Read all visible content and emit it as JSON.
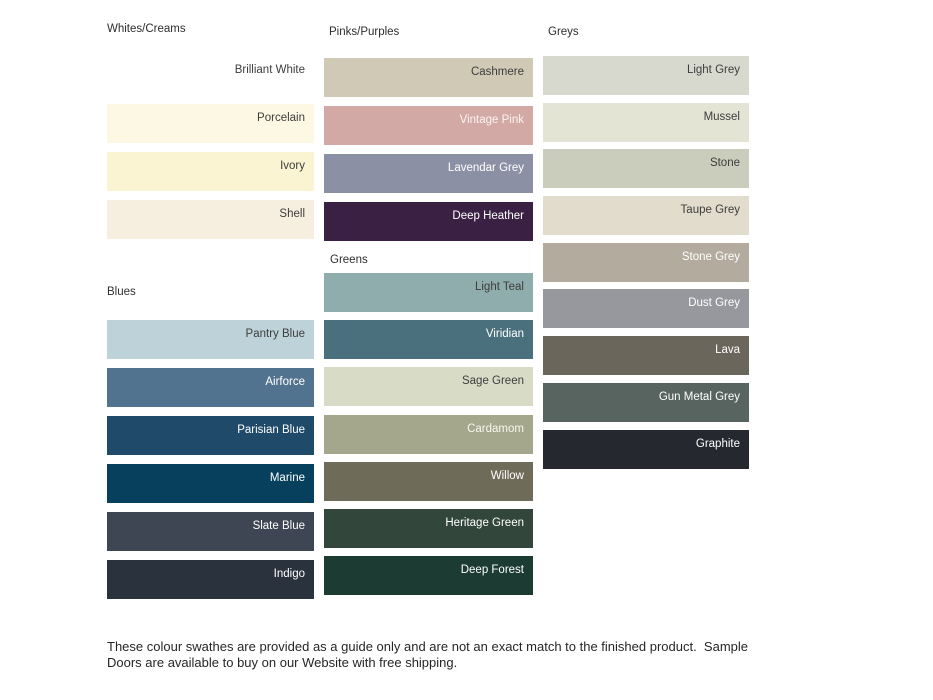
{
  "columns": [
    {
      "groups": [
        {
          "title": "Whites/Creams",
          "swatches": [
            {
              "name": "Brilliant White",
              "color": "#FFFFFF",
              "text_color": "#3D3D3D"
            },
            {
              "name": "Porcelain",
              "color": "#FCF8E3",
              "text_color": "#3D3D3D"
            },
            {
              "name": "Ivory",
              "color": "#FAF4D3",
              "text_color": "#3D3D3D"
            },
            {
              "name": "Shell",
              "color": "#F6EEDF",
              "text_color": "#3D3D3D"
            }
          ]
        },
        {
          "title": "Blues",
          "swatches": [
            {
              "name": "Pantry Blue",
              "color": "#BED3D9",
              "text_color": "#3D3D3D"
            },
            {
              "name": "Airforce",
              "color": "#52738F",
              "text_color": "#FFFFFF"
            },
            {
              "name": "Parisian Blue",
              "color": "#1F4A69",
              "text_color": "#FFFFFF"
            },
            {
              "name": "Marine",
              "color": "#06405C",
              "text_color": "#FFFFFF"
            },
            {
              "name": "Slate Blue",
              "color": "#3F4653",
              "text_color": "#FFFFFF"
            },
            {
              "name": "Indigo",
              "color": "#2A323D",
              "text_color": "#FFFFFF"
            }
          ]
        }
      ]
    },
    {
      "groups": [
        {
          "title": "Pinks/Purples",
          "swatches": [
            {
              "name": "Cashmere",
              "color": "#CFC9B6",
              "text_color": "#3D3D3D"
            },
            {
              "name": "Vintage Pink",
              "color": "#D3A9A5",
              "text_color": "#FBF3F0"
            },
            {
              "name": "Lavendar Grey",
              "color": "#8C90A4",
              "text_color": "#FFFFFF"
            },
            {
              "name": "Deep Heather",
              "color": "#3A2144",
              "text_color": "#FFFFFF"
            }
          ]
        },
        {
          "title": "Greens",
          "swatches": [
            {
              "name": "Light Teal",
              "color": "#8FADAC",
              "text_color": "#3D3D3D"
            },
            {
              "name": "Viridian",
              "color": "#49707C",
              "text_color": "#FFFFFF"
            },
            {
              "name": "Sage Green",
              "color": "#D8DCC7",
              "text_color": "#3D3D3D"
            },
            {
              "name": "Cardamom",
              "color": "#A4A78C",
              "text_color": "#F8F6EE"
            },
            {
              "name": "Willow",
              "color": "#6F6B59",
              "text_color": "#FFFFFF"
            },
            {
              "name": "Heritage Green",
              "color": "#32463C",
              "text_color": "#FFFFFF"
            },
            {
              "name": "Deep Forest",
              "color": "#1C3B33",
              "text_color": "#FFFFFF"
            }
          ]
        }
      ]
    },
    {
      "groups": [
        {
          "title": "Greys",
          "swatches": [
            {
              "name": "Light Grey",
              "color": "#D8D9CE",
              "text_color": "#3D3D3D"
            },
            {
              "name": "Mussel",
              "color": "#E3E4D4",
              "text_color": "#3D3D3D"
            },
            {
              "name": "Stone",
              "color": "#CBCDBC",
              "text_color": "#3D3D3D"
            },
            {
              "name": "Taupe Grey",
              "color": "#E1DCCC",
              "text_color": "#3D3D3D"
            },
            {
              "name": "Stone Grey",
              "color": "#B3AB9E",
              "text_color": "#FFFFFF"
            },
            {
              "name": "Dust Grey",
              "color": "#97989D",
              "text_color": "#FFFFFF"
            },
            {
              "name": "Lava",
              "color": "#6A665C",
              "text_color": "#FFFFFF"
            },
            {
              "name": "Gun Metal Grey",
              "color": "#57645F",
              "text_color": "#FFFFFF"
            },
            {
              "name": "Graphite",
              "color": "#25292F",
              "text_color": "#FFFFFF"
            }
          ]
        }
      ]
    }
  ],
  "footer": {
    "line1": "These colour swathes are provided as a guide only and are not an exact match to the finished product.  Sample",
    "line2": "Doors are available to buy on our Website with free shipping."
  }
}
